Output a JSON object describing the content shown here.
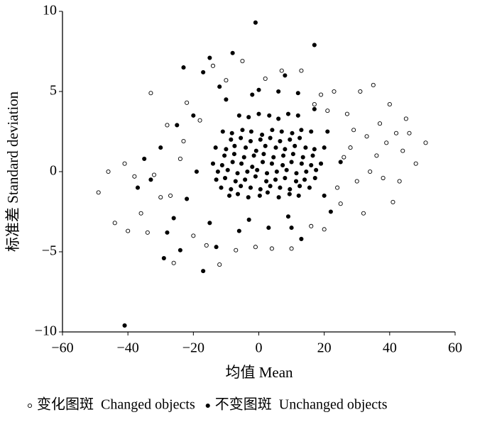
{
  "chart_data": {
    "type": "scatter",
    "xlabel": "均值 Mean",
    "ylabel": "标准差 Standard deviation",
    "xlim": [
      -60,
      60
    ],
    "ylim": [
      -10,
      10
    ],
    "xticks": [
      {
        "value": -60,
        "label": "−60"
      },
      {
        "value": -40,
        "label": "−40"
      },
      {
        "value": -20,
        "label": "−20"
      },
      0,
      20,
      40,
      60
    ],
    "yticks": [
      {
        "value": -10,
        "label": "−10"
      },
      {
        "value": -5,
        "label": "−5"
      },
      0,
      5,
      10
    ],
    "legend": "bottom",
    "series": [
      {
        "name": "变化图斑  Changed objects",
        "color": "#ffffff",
        "x": [
          -49,
          -46,
          -44,
          -41,
          -38,
          -36,
          -34,
          -32,
          -30,
          -28,
          -26,
          -24,
          -22,
          -20,
          -18,
          -16,
          -14,
          -12,
          -10,
          -7,
          -5,
          -1,
          2,
          4,
          7,
          10,
          13,
          16,
          19,
          21,
          23,
          25,
          27,
          28,
          30,
          31,
          32,
          33,
          35,
          36,
          37,
          38,
          39,
          40,
          41,
          42,
          44,
          45,
          46,
          48,
          51,
          -33,
          -40,
          -27,
          26,
          29,
          24,
          34,
          -23,
          17,
          20,
          43
        ],
        "values": [
          -1.3,
          0.0,
          -3.2,
          0.5,
          -0.3,
          -2.6,
          -3.8,
          -0.2,
          -1.6,
          2.9,
          -5.7,
          0.8,
          4.3,
          -4.0,
          3.2,
          -4.6,
          6.6,
          -5.8,
          5.7,
          -4.9,
          6.9,
          -4.7,
          5.8,
          -4.8,
          6.3,
          -4.8,
          6.3,
          -3.4,
          4.8,
          3.8,
          5.0,
          -2.0,
          3.6,
          1.5,
          -0.6,
          5.0,
          -2.6,
          2.2,
          5.4,
          1.0,
          3.0,
          -0.4,
          1.8,
          4.2,
          -1.9,
          2.4,
          1.3,
          3.3,
          2.4,
          0.5,
          1.8,
          4.9,
          -3.7,
          -1.5,
          0.9,
          2.6,
          -1.0,
          0.0,
          1.9,
          4.2,
          -3.6,
          -0.6
        ]
      },
      {
        "name": "不变图斑  Unchanged objects",
        "color": "#000000",
        "x": [
          -9,
          -6.4,
          -3.2,
          0.3,
          2.7,
          6.1,
          9.4,
          12.2,
          -13,
          -10.3,
          -7.1,
          -4.2,
          -1,
          2.3,
          5.1,
          8,
          11.4,
          14,
          17.2,
          -14,
          -11.2,
          -8,
          -5.3,
          -2,
          1.2,
          4,
          7.3,
          10,
          13.1,
          16,
          19,
          -13.2,
          -10,
          -7.4,
          -4,
          -0.8,
          2,
          5.2,
          8,
          11,
          14.3,
          17,
          20,
          -11,
          -8.2,
          -5,
          -2.3,
          1,
          4.1,
          7,
          10.2,
          13,
          16,
          -6,
          -3.1,
          0,
          3.2,
          6,
          9,
          12,
          -11.5,
          -8.5,
          -5.5,
          -2.5,
          0.5,
          3.5,
          6.5,
          9.5,
          12.5,
          15.5,
          -12.5,
          -9.5,
          -6.5,
          -3.5,
          -0.5,
          2.5,
          5.5,
          8.5,
          11.5,
          14.5,
          17.5,
          -10.5,
          -7.5,
          -4.5,
          -1.5,
          1.5,
          4.5,
          7.5,
          10.5,
          13.5,
          16.5,
          -8.5,
          -5.5,
          -2.5,
          0.5,
          3.5,
          6.5,
          9.5,
          12.5,
          -1,
          17,
          -8,
          -15,
          -23,
          -17,
          8,
          -41,
          -17,
          -29,
          -24,
          -13,
          -6,
          3,
          13,
          22,
          -26,
          -33,
          -30,
          -25,
          -20,
          -12,
          6,
          -35,
          25,
          20,
          -22,
          -3,
          9,
          -19,
          17,
          21,
          -10,
          0,
          12,
          -37,
          -28,
          -15,
          -2,
          10
        ],
        "values": [
          -1.5,
          -1.4,
          -1.6,
          -1.5,
          -1.3,
          -1.6,
          -1.4,
          -1.5,
          -0.5,
          -0.4,
          -0.6,
          -0.5,
          -0.3,
          -0.6,
          -0.5,
          -0.4,
          -0.6,
          -0.5,
          -0.4,
          0.5,
          0.4,
          0.6,
          0.5,
          0.3,
          0.6,
          0.5,
          0.4,
          0.6,
          0.5,
          0.4,
          0.5,
          1.5,
          1.4,
          1.6,
          1.5,
          1.3,
          1.6,
          1.5,
          1.4,
          1.6,
          1.5,
          1.4,
          1.5,
          2.5,
          2.4,
          2.6,
          2.5,
          2.3,
          2.6,
          2.5,
          2.4,
          2.6,
          2.5,
          3.5,
          3.4,
          3.6,
          3.5,
          3.3,
          3.6,
          3.5,
          -1,
          -1.1,
          -0.9,
          -1,
          -1.1,
          -0.9,
          -1,
          -1.1,
          -0.9,
          -1,
          0,
          0.1,
          -0.1,
          0,
          0.1,
          -0.1,
          0,
          0.1,
          -0.1,
          0,
          0.1,
          1,
          1.1,
          0.9,
          1,
          1.1,
          0.9,
          1,
          1.1,
          0.9,
          1,
          2,
          2.1,
          1.9,
          2,
          2.1,
          1.9,
          2,
          2.1,
          9.3,
          7.9,
          7.4,
          7.1,
          6.5,
          6.2,
          6.0,
          -9.6,
          -6.2,
          -5.4,
          -4.9,
          -4.7,
          -3.7,
          -3.5,
          -4.2,
          -2.5,
          -2.9,
          -0.5,
          1.5,
          2.9,
          3.5,
          5.3,
          5.0,
          0.8,
          0.6,
          -1.5,
          -1.7,
          -3.0,
          -2.8,
          0.0,
          3.9,
          2.5,
          4.5,
          5.1,
          4.9,
          -1.0,
          -3.8,
          -3.2,
          4.8,
          -3.5
        ]
      }
    ]
  }
}
